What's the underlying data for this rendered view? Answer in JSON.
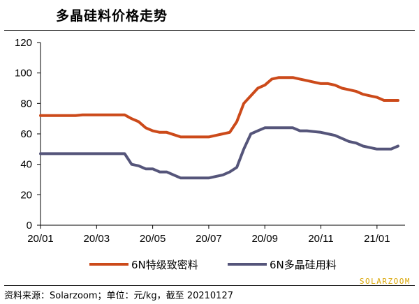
{
  "title": "多晶硅料价格走势",
  "source": "资料来源：Solarzoom；单位：元/kg，截至 20210127",
  "logo": "SOLARZOOM",
  "colors": {
    "series1": "#cc4a1a",
    "series2": "#55557a",
    "axis": "#000000"
  },
  "chart_data": {
    "type": "line",
    "ylim": [
      0,
      120
    ],
    "yticks": [
      0,
      20,
      40,
      60,
      80,
      100,
      120
    ],
    "xlim": [
      0,
      13
    ],
    "xticks": [
      {
        "x": 0,
        "label": "20/01"
      },
      {
        "x": 2,
        "label": "20/03"
      },
      {
        "x": 4,
        "label": "20/05"
      },
      {
        "x": 6,
        "label": "20/07"
      },
      {
        "x": 8,
        "label": "20/09"
      },
      {
        "x": 10,
        "label": "20/11"
      },
      {
        "x": 12,
        "label": "21/01"
      }
    ],
    "legend_position": "bottom",
    "series": [
      {
        "name": "6N特级致密料",
        "color": "#cc4a1a",
        "x": [
          0,
          1,
          1.25,
          1.5,
          2,
          2.5,
          2.75,
          3.0,
          3.25,
          3.5,
          3.75,
          4.0,
          4.25,
          4.5,
          5,
          5.5,
          5.75,
          6.0,
          6.25,
          6.5,
          6.75,
          7.0,
          7.25,
          7.5,
          7.75,
          8.0,
          8.25,
          8.5,
          8.75,
          9.0,
          9.25,
          9.5,
          9.75,
          10.0,
          10.25,
          10.5,
          10.75,
          11.0,
          11.25,
          11.5,
          11.75,
          12.0,
          12.25,
          12.5,
          12.75
        ],
        "values": [
          72,
          72,
          72,
          72.5,
          72.5,
          72.5,
          72.5,
          72.5,
          70,
          68,
          64,
          62,
          61,
          61,
          58,
          58,
          58,
          58,
          59,
          60,
          61,
          68,
          80,
          85,
          90,
          92,
          96,
          97,
          97,
          97,
          96,
          95,
          94,
          93,
          93,
          92,
          90,
          89,
          88,
          86,
          85,
          84,
          82,
          82,
          82
        ]
      },
      {
        "name": "6N多晶硅用料",
        "color": "#55557a",
        "x": [
          0,
          1,
          1.5,
          2,
          2.5,
          2.75,
          3.0,
          3.25,
          3.5,
          3.75,
          4.0,
          4.25,
          4.5,
          4.75,
          5,
          5.5,
          6.0,
          6.25,
          6.5,
          6.75,
          7.0,
          7.25,
          7.5,
          7.75,
          8.0,
          8.25,
          8.5,
          8.75,
          9.0,
          9.25,
          9.5,
          9.75,
          10.0,
          10.25,
          10.5,
          10.75,
          11.0,
          11.25,
          11.5,
          11.75,
          12.0,
          12.25,
          12.5,
          12.75
        ],
        "values": [
          47,
          47,
          47,
          47,
          47,
          47,
          47,
          40,
          39,
          37,
          37,
          35,
          35,
          33,
          31,
          31,
          31,
          32,
          33,
          35,
          38,
          50,
          60,
          62,
          64,
          64,
          64,
          64,
          64,
          62,
          62,
          61.5,
          61,
          60,
          59,
          57,
          55,
          54,
          52,
          51,
          50,
          50,
          50,
          52
        ]
      }
    ]
  }
}
